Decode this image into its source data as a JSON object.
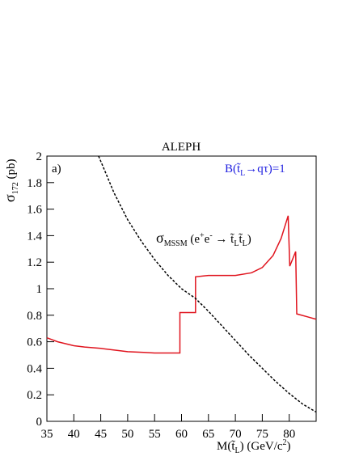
{
  "chart_data": {
    "type": "line",
    "title": "ALEPH",
    "panel_label": "a)",
    "branching": {
      "pre": "B(",
      "particle": "t̃",
      "sub": "L",
      "post": "→qτ)=1",
      "color": "#1f1fe0"
    },
    "y_label": {
      "symbol": "σ",
      "sub": "172",
      "unit": " (pb)"
    },
    "x_label": {
      "pre": "M(",
      "particle": "t̃",
      "sub": "L",
      "post": ") (GeV/c",
      "sup": "2",
      "end": ")"
    },
    "annotation": {
      "symbol": "σ",
      "sub": "MSSM",
      "text": " (e",
      "sup1": "+",
      "mid": "e",
      "sup2": "-",
      "arrow": " → t̃",
      "sub1": "L",
      "p2": "t̃",
      "sub2": "L",
      "end": ")"
    },
    "xlim": [
      35,
      85
    ],
    "xticks": [
      35,
      40,
      45,
      50,
      55,
      60,
      65,
      70,
      75,
      80
    ],
    "ylim": [
      0,
      2
    ],
    "yticks": [
      0,
      0.2,
      0.4,
      0.6,
      0.8,
      1,
      1.2,
      1.4,
      1.6,
      1.8,
      2
    ],
    "series": [
      {
        "color": "#e0141e",
        "dash": false,
        "x": [
          35,
          37,
          40,
          42,
          45,
          48,
          50,
          53,
          55,
          59.7,
          59.7,
          62.6,
          62.6,
          65,
          70,
          73,
          75,
          77,
          78.5,
          79.8,
          80.1,
          81.2,
          81.4,
          85
        ],
        "values": [
          0.63,
          0.6,
          0.57,
          0.56,
          0.55,
          0.535,
          0.525,
          0.52,
          0.515,
          0.515,
          0.82,
          0.82,
          1.09,
          1.1,
          1.1,
          1.12,
          1.16,
          1.25,
          1.38,
          1.55,
          1.17,
          1.28,
          0.81,
          0.77
        ]
      },
      {
        "color": "#000000",
        "dash": true,
        "x": [
          44.6,
          47.5,
          50,
          52.5,
          55,
          57.5,
          60,
          62.5,
          65,
          67.5,
          70,
          72.5,
          75,
          77.5,
          80,
          82.5,
          85
        ],
        "values": [
          2,
          1.72,
          1.52,
          1.36,
          1.22,
          1.1,
          1,
          0.93,
          0.83,
          0.72,
          0.61,
          0.5,
          0.4,
          0.3,
          0.21,
          0.13,
          0.07
        ]
      }
    ]
  }
}
